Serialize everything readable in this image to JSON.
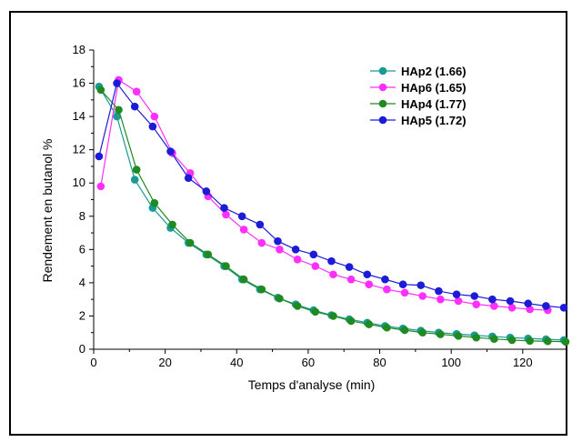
{
  "chart_data": {
    "type": "line",
    "title": "",
    "xlabel": "Temps d'analyse (min)",
    "ylabel": "Rendement en butanol %",
    "xlim": [
      0,
      132
    ],
    "ylim": [
      0,
      18
    ],
    "xticks": [
      0,
      20,
      40,
      60,
      80,
      100,
      120
    ],
    "yticks": [
      0,
      2,
      4,
      6,
      8,
      10,
      12,
      14,
      16,
      18
    ],
    "grid": false,
    "legend_position": "top-right",
    "series": [
      {
        "name": "HAp2 (1.66)",
        "color": "#1a9a96",
        "x": [
          1.5,
          6.5,
          11.5,
          16.5,
          21.5,
          26.5,
          31.5,
          36.5,
          41.5,
          46.5,
          51.5,
          56.5,
          61.5,
          66.5,
          71.5,
          76.5,
          81.5,
          86.5,
          91.5,
          96.5,
          101.5,
          106.5,
          111.5,
          116.5,
          121.5,
          126.5,
          131.5
        ],
        "y": [
          15.8,
          14.0,
          10.2,
          8.5,
          7.3,
          6.4,
          5.7,
          5.0,
          4.2,
          3.6,
          3.1,
          2.7,
          2.35,
          2.05,
          1.8,
          1.6,
          1.4,
          1.25,
          1.12,
          1.0,
          0.92,
          0.84,
          0.77,
          0.7,
          0.65,
          0.6,
          0.55
        ]
      },
      {
        "name": "HAp6 (1.65)",
        "color": "#ff2fff",
        "x": [
          2,
          7,
          12,
          17,
          22,
          27,
          32,
          37,
          42,
          47,
          52,
          57,
          62,
          67,
          72,
          77,
          82,
          87,
          92,
          97,
          102,
          107,
          112,
          117,
          122,
          127
        ],
        "y": [
          9.8,
          16.2,
          15.5,
          14.0,
          11.8,
          10.6,
          9.2,
          8.1,
          7.2,
          6.4,
          6.0,
          5.4,
          5.0,
          4.5,
          4.2,
          3.9,
          3.6,
          3.4,
          3.2,
          3.0,
          2.9,
          2.7,
          2.6,
          2.5,
          2.4,
          2.35
        ]
      },
      {
        "name": "HAp4 (1.77)",
        "color": "#1f8a1f",
        "x": [
          2,
          7,
          12,
          17,
          22,
          27,
          32,
          37,
          42,
          47,
          52,
          57,
          62,
          67,
          72,
          77,
          82,
          87,
          92,
          97,
          102,
          107,
          112,
          117,
          122,
          127,
          132
        ],
        "y": [
          15.6,
          14.4,
          10.8,
          8.8,
          7.5,
          6.4,
          5.7,
          5.0,
          4.2,
          3.6,
          3.05,
          2.6,
          2.25,
          2.0,
          1.7,
          1.5,
          1.3,
          1.15,
          1.0,
          0.9,
          0.8,
          0.7,
          0.62,
          0.55,
          0.5,
          0.48,
          0.45
        ]
      },
      {
        "name": "HAp5 (1.72)",
        "color": "#1c1cd6",
        "x": [
          1.5,
          6.5,
          11.5,
          16.5,
          21.5,
          26.5,
          31.5,
          36.5,
          41.5,
          46.5,
          51.5,
          56.5,
          61.5,
          66.5,
          71.5,
          76.5,
          81.5,
          86.5,
          91.5,
          96.5,
          101.5,
          106.5,
          111.5,
          116.5,
          121.5,
          126.5,
          131.5
        ],
        "y": [
          11.6,
          16.0,
          14.6,
          13.4,
          11.9,
          10.3,
          9.5,
          8.5,
          8.0,
          7.5,
          6.5,
          6.0,
          5.7,
          5.3,
          4.95,
          4.5,
          4.2,
          3.9,
          3.85,
          3.5,
          3.3,
          3.2,
          3.0,
          2.9,
          2.75,
          2.6,
          2.5
        ]
      }
    ]
  }
}
